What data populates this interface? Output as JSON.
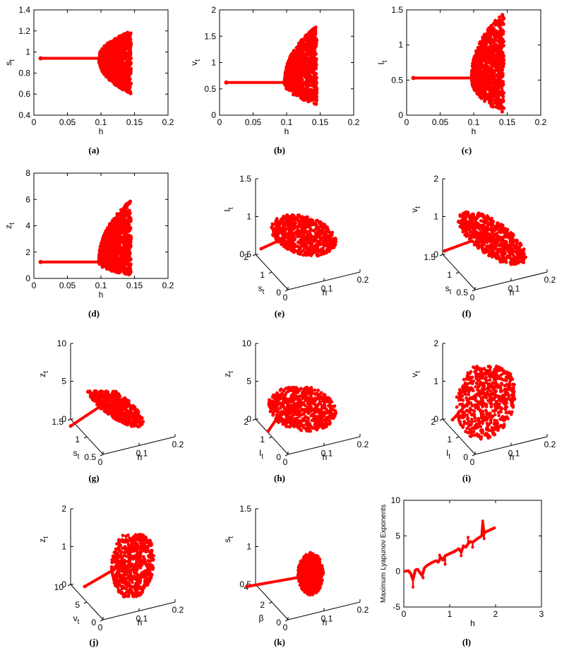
{
  "figure": {
    "colors": {
      "series": "#ff0000",
      "axis": "#000000",
      "background": "#ffffff"
    },
    "panels": [
      {
        "id": "a",
        "caption": "(a)",
        "chart_data": {
          "type": "scatter",
          "xlabel": "h",
          "ylabel": "s_t",
          "xlim": [
            0,
            0.2
          ],
          "ylim": [
            0.4,
            1.4
          ],
          "xticks": [
            "0",
            "0.05",
            "0.1",
            "0.15",
            "0.2"
          ],
          "yticks": [
            "0.4",
            "0.6",
            "0.8",
            "1",
            "1.2",
            "1.4"
          ],
          "xtick_values": [
            0,
            0.05,
            0.1,
            0.15,
            0.2
          ],
          "ytick_values": [
            0.4,
            0.6,
            0.8,
            1,
            1.2,
            1.4
          ],
          "stable": {
            "x_start": 0.01,
            "x_bifurcation": 0.097,
            "value": 0.94
          },
          "chaotic": {
            "x_end": 0.145,
            "max": 1.2,
            "min": 0.6
          }
        }
      },
      {
        "id": "b",
        "caption": "(b)",
        "chart_data": {
          "type": "scatter",
          "xlabel": "h",
          "ylabel": "v_t",
          "xlim": [
            0,
            0.2
          ],
          "ylim": [
            0,
            2
          ],
          "xticks": [
            "0",
            "0.05",
            "0.1",
            "0.15",
            "0.2"
          ],
          "yticks": [
            "0",
            "0.5",
            "1",
            "1.5",
            "2"
          ],
          "xtick_values": [
            0,
            0.05,
            0.1,
            0.15,
            0.2
          ],
          "ytick_values": [
            0,
            0.5,
            1,
            1.5,
            2
          ],
          "stable": {
            "x_start": 0.01,
            "x_bifurcation": 0.097,
            "value": 0.62
          },
          "chaotic": {
            "x_end": 0.145,
            "max": 1.7,
            "min": 0.2
          }
        }
      },
      {
        "id": "c",
        "caption": "(c)",
        "chart_data": {
          "type": "scatter",
          "xlabel": "h",
          "ylabel": "I_t",
          "xlim": [
            0,
            0.2
          ],
          "ylim": [
            0,
            1.5
          ],
          "xticks": [
            "0",
            "0.05",
            "0.1",
            "0.15",
            "0.2"
          ],
          "yticks": [
            "0",
            "0.5",
            "1",
            "1.5"
          ],
          "xtick_values": [
            0,
            0.05,
            0.1,
            0.15,
            0.2
          ],
          "ytick_values": [
            0,
            0.5,
            1,
            1.5
          ],
          "stable": {
            "x_start": 0.01,
            "x_bifurcation": 0.097,
            "value": 0.53
          },
          "chaotic": {
            "x_end": 0.145,
            "max": 1.47,
            "min": 0.03
          }
        }
      },
      {
        "id": "d",
        "caption": "(d)",
        "chart_data": {
          "type": "scatter",
          "xlabel": "h",
          "ylabel": "z_t",
          "xlim": [
            0,
            0.2
          ],
          "ylim": [
            0,
            8
          ],
          "xticks": [
            "0",
            "0.05",
            "0.1",
            "0.15",
            "0.2"
          ],
          "yticks": [
            "0",
            "2",
            "4",
            "6",
            "8"
          ],
          "xtick_values": [
            0,
            0.05,
            0.1,
            0.15,
            0.2
          ],
          "ytick_values": [
            0,
            2,
            4,
            6,
            8
          ],
          "stable": {
            "x_start": 0.01,
            "x_bifurcation": 0.097,
            "value": 1.25
          },
          "chaotic": {
            "x_end": 0.145,
            "max": 6.0,
            "min": 0.2
          }
        }
      },
      {
        "id": "e",
        "caption": "(e)",
        "chart_data": {
          "type": "scatter-3d",
          "xlabel": "h",
          "ylabel": "s_t",
          "zlabel": "I_t",
          "xticks": [
            "0",
            "0.1",
            "0.2"
          ],
          "yticks": [
            "0",
            "1",
            "2"
          ],
          "zticks": [
            "0.5",
            "1",
            "1.5"
          ]
        }
      },
      {
        "id": "f",
        "caption": "(f)",
        "chart_data": {
          "type": "scatter-3d",
          "xlabel": "h",
          "ylabel": "s_t",
          "zlabel": "v_t",
          "xticks": [
            "0",
            "0.1",
            "0.2"
          ],
          "yticks": [
            "0.5",
            "1",
            "1.5"
          ],
          "zticks": [
            "0",
            "1",
            "2"
          ]
        }
      },
      {
        "id": "g",
        "caption": "(g)",
        "chart_data": {
          "type": "scatter-3d",
          "xlabel": "h",
          "ylabel": "s_t",
          "zlabel": "z_t",
          "xticks": [
            "0",
            "0.1",
            "0.2"
          ],
          "yticks": [
            "0.5",
            "1",
            "1.5"
          ],
          "zticks": [
            "0",
            "5",
            "10"
          ]
        }
      },
      {
        "id": "h",
        "caption": "(h)",
        "chart_data": {
          "type": "scatter-3d",
          "xlabel": "h",
          "ylabel": "I_t",
          "zlabel": "z_t",
          "xticks": [
            "0",
            "0.1",
            "0.2"
          ],
          "yticks": [
            "0",
            "1",
            "2"
          ],
          "zticks": [
            "0",
            "5",
            "10"
          ]
        }
      },
      {
        "id": "i",
        "caption": "(i)",
        "chart_data": {
          "type": "scatter-3d",
          "xlabel": "h",
          "ylabel": "I_t",
          "zlabel": "v_t",
          "xticks": [
            "0",
            "0.1",
            "0.2"
          ],
          "yticks": [
            "0",
            "1",
            "2"
          ],
          "zticks": [
            "0",
            "1",
            "2"
          ]
        }
      },
      {
        "id": "j",
        "caption": "(j)",
        "chart_data": {
          "type": "scatter-3d",
          "xlabel": "h",
          "ylabel": "v_t",
          "zlabel": "z_t",
          "xticks": [
            "0",
            "0.1",
            "0.2"
          ],
          "yticks": [
            "0",
            "5",
            "10"
          ],
          "zticks": [
            "0",
            "1",
            "2"
          ]
        }
      },
      {
        "id": "k",
        "caption": "(k)",
        "chart_data": {
          "type": "scatter-3d",
          "xlabel": "h",
          "ylabel": "β",
          "zlabel": "s_t",
          "xticks": [
            "0",
            "0.1",
            "0.2"
          ],
          "yticks": [
            "0",
            "2",
            "4"
          ],
          "zticks": [
            "0.5",
            "1",
            "1.5"
          ]
        }
      },
      {
        "id": "l",
        "caption": "(l)",
        "chart_data": {
          "type": "line",
          "xlabel": "h",
          "ylabel": "Maximum Lyapunov Exponents",
          "xlim": [
            0,
            3
          ],
          "ylim": [
            -5,
            10
          ],
          "xticks": [
            "0",
            "1",
            "2",
            "3"
          ],
          "yticks": [
            "-5",
            "0",
            "5",
            "10"
          ],
          "xtick_values": [
            0,
            1,
            2,
            3
          ],
          "ytick_values": [
            -5,
            0,
            5,
            10
          ],
          "x": [
            0.0,
            0.1,
            0.15,
            0.2,
            0.25,
            0.3,
            0.4,
            0.45,
            0.5,
            0.6,
            0.7,
            0.75,
            0.8,
            0.85,
            0.9,
            1.0,
            1.1,
            1.2,
            1.25,
            1.3,
            1.35,
            1.4,
            1.45,
            1.5,
            1.6,
            1.7,
            1.72,
            1.75,
            1.8,
            1.9,
            2.0
          ],
          "y": [
            0.0,
            0.1,
            -0.3,
            -1.2,
            0.2,
            0.3,
            -0.6,
            0.5,
            0.8,
            1.2,
            1.5,
            1.3,
            2.0,
            1.6,
            2.2,
            2.5,
            2.8,
            3.2,
            2.7,
            3.6,
            3.4,
            3.9,
            4.2,
            4.1,
            4.6,
            5.0,
            6.8,
            5.4,
            5.6,
            5.9,
            6.2
          ],
          "spikes": [
            {
              "x": 0.2,
              "y": -2.2
            },
            {
              "x": 0.42,
              "y": -0.9
            },
            {
              "x": 0.78,
              "y": 2.3
            },
            {
              "x": 0.9,
              "y": 1.0
            },
            {
              "x": 1.25,
              "y": 2.2
            },
            {
              "x": 1.4,
              "y": 4.8
            },
            {
              "x": 1.5,
              "y": 3.4
            },
            {
              "x": 1.72,
              "y": 7.1
            },
            {
              "x": 1.75,
              "y": 4.6
            }
          ]
        }
      }
    ]
  }
}
